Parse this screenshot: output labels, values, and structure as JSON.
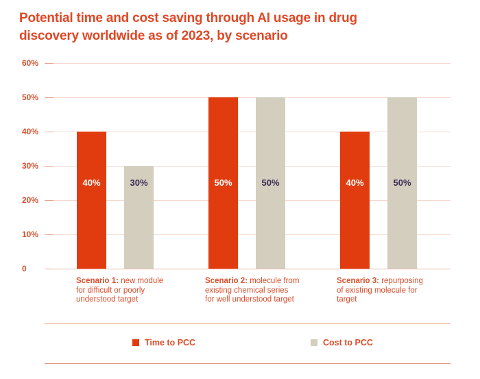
{
  "title": "Potential time and cost saving through AI usage in drug\ndiscovery worldwide as of 2023, by scenario",
  "colors": {
    "title_text": "#DF4826",
    "axis_text": "#D94E2C",
    "bar_red": "#E03C10",
    "bar_beige": "#D4CEBF",
    "bar_label_on_red": "#FFFFFF",
    "bar_label_on_beige": "#3E2C55",
    "gridline": "#F5D8CE",
    "tick": "#E6A48F",
    "baseline": "#EDB5A3",
    "separator": "#E59580"
  },
  "chart_data": {
    "type": "bar",
    "title": "Potential time and cost saving through AI usage in drug discovery worldwide as of 2023, by scenario",
    "categories": [
      {
        "prefix": "Scenario 1:",
        "rest": " new module\nfor difficult or poorly\nunderstood target"
      },
      {
        "prefix": "Scenario 2:",
        "rest": " molecule from\nexisting chemical series\nfor well understood target"
      },
      {
        "prefix": "Scenario 3:",
        "rest": " repurposing\nof existing molecule for\ntarget"
      }
    ],
    "series": [
      {
        "name": "Time to PCC",
        "values": [
          40,
          50,
          40
        ],
        "labels": [
          "40%",
          "50%",
          "40%"
        ]
      },
      {
        "name": "Cost to PCC",
        "values": [
          30,
          50,
          50
        ],
        "labels": [
          "30%",
          "50%",
          "50%"
        ]
      }
    ],
    "xlabel": "",
    "ylabel": "",
    "ylim": [
      0,
      60
    ],
    "yticks": [
      {
        "label": "60%",
        "value": 60
      },
      {
        "label": "50%",
        "value": 50
      },
      {
        "label": "40%",
        "value": 40
      },
      {
        "label": "30%",
        "value": 30
      },
      {
        "label": "20%",
        "value": 20
      },
      {
        "label": "10%",
        "value": 10
      },
      {
        "label": "0",
        "value": 0
      }
    ],
    "grid": true,
    "legend_position": "bottom"
  }
}
